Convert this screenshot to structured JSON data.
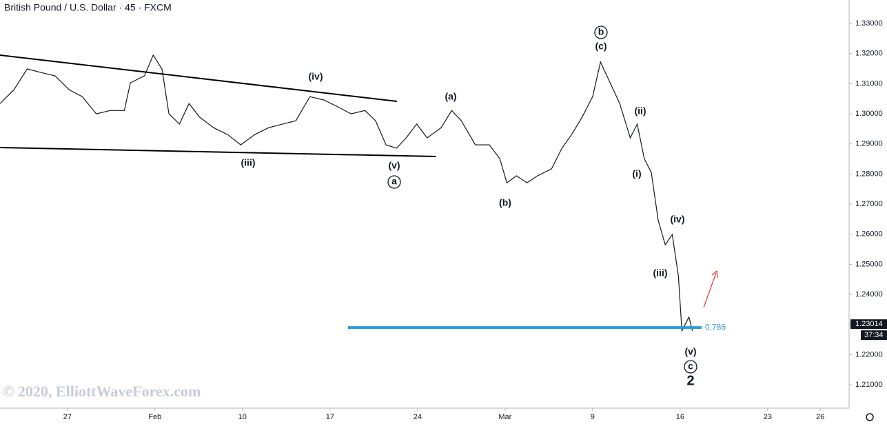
{
  "chart_data": {
    "type": "line",
    "title": "British Pound / U.S. Dollar · 45 · FXCM",
    "watermark": "© 2020, ElliottWaveForex.com",
    "x": [
      -0.77,
      -0.61,
      -0.46,
      -0.3,
      -0.14,
      0.02,
      0.17,
      0.33,
      0.49,
      0.65,
      0.72,
      0.88,
      0.98,
      1.08,
      1.16,
      1.28,
      1.39,
      1.51,
      1.67,
      1.83,
      1.98,
      2.14,
      2.3,
      2.46,
      2.61,
      2.77,
      2.93,
      3.09,
      3.24,
      3.4,
      3.52,
      3.64,
      3.76,
      3.87,
      3.99,
      4.11,
      4.27,
      4.39,
      4.5,
      4.66,
      4.82,
      4.94,
      5.02,
      5.13,
      5.25,
      5.37,
      5.53,
      5.65,
      5.76,
      5.88,
      6.0,
      6.09,
      6.2,
      6.31,
      6.43,
      6.51,
      6.59,
      6.67,
      6.75,
      6.83,
      6.91,
      6.98,
      7.02,
      7.1,
      7.14
    ],
    "series": [
      {
        "color": "#131722",
        "values": [
          1.3034,
          1.308,
          1.3149,
          1.3137,
          1.3126,
          1.308,
          1.3057,
          1.3,
          1.3011,
          1.3011,
          1.3103,
          1.3126,
          1.3195,
          1.3149,
          1.3,
          1.2966,
          1.3034,
          1.2989,
          1.2954,
          1.2931,
          1.2897,
          1.2931,
          1.2954,
          1.2966,
          1.2977,
          1.3057,
          1.3046,
          1.3023,
          1.3,
          1.3011,
          1.2977,
          1.2897,
          1.2886,
          1.292,
          1.2966,
          1.292,
          1.2954,
          1.3011,
          1.2977,
          1.2897,
          1.2897,
          1.2851,
          1.2771,
          1.2794,
          1.2771,
          1.2794,
          1.2817,
          1.2886,
          1.2931,
          1.2989,
          1.3057,
          1.3172,
          1.3103,
          1.3034,
          1.292,
          1.2966,
          1.2851,
          1.2805,
          1.2645,
          1.2565,
          1.2599,
          1.2462,
          1.2279,
          1.2325,
          1.2279
        ]
      }
    ],
    "xlim": [
      -0.77,
      8.93
    ],
    "xticks": [
      {
        "value": 0,
        "label": "27"
      },
      {
        "value": 1,
        "label": "Feb"
      },
      {
        "value": 2,
        "label": "10"
      },
      {
        "value": 3,
        "label": "17"
      },
      {
        "value": 4,
        "label": "24"
      },
      {
        "value": 5,
        "label": "Mar"
      },
      {
        "value": 6,
        "label": "9"
      },
      {
        "value": 7,
        "label": "16"
      },
      {
        "value": 8,
        "label": "23"
      },
      {
        "value": 8.6,
        "label": "26"
      }
    ],
    "ylim": [
      1.2027,
      1.3378
    ],
    "yticks": [
      {
        "value": 1.21,
        "label": "1.21000"
      },
      {
        "value": 1.22,
        "label": "1.22000"
      },
      {
        "value": 1.23,
        "label": "1.23000"
      },
      {
        "value": 1.24,
        "label": "1.24000"
      },
      {
        "value": 1.25,
        "label": "1.25000"
      },
      {
        "value": 1.26,
        "label": "1.26000"
      },
      {
        "value": 1.27,
        "label": "1.27000"
      },
      {
        "value": 1.28,
        "label": "1.28000"
      },
      {
        "value": 1.29,
        "label": "1.29000"
      },
      {
        "value": 1.3,
        "label": "1.30000"
      },
      {
        "value": 1.31,
        "label": "1.31000"
      },
      {
        "value": 1.32,
        "label": "1.32000"
      },
      {
        "value": 1.33,
        "label": "1.33000"
      }
    ],
    "current_price": 1.23014,
    "countdown": "37:34",
    "fib_level": {
      "value": 1.229,
      "label": "0.786",
      "color": "#2e9bd6"
    },
    "annotations": [
      {
        "text": "(iv)"
      },
      {
        "text": "(iii)"
      },
      {
        "text": "(v)"
      },
      {
        "text": "a",
        "circled": true
      },
      {
        "text": "(a)"
      },
      {
        "text": "(b)"
      },
      {
        "text": "b",
        "circled": true
      },
      {
        "text": "(c)"
      },
      {
        "text": "(ii)"
      },
      {
        "text": "(i)"
      },
      {
        "text": "(iv)"
      },
      {
        "text": "(iii)"
      },
      {
        "text": "(v)"
      },
      {
        "text": "c",
        "circled": true
      },
      {
        "text": "2"
      }
    ]
  }
}
